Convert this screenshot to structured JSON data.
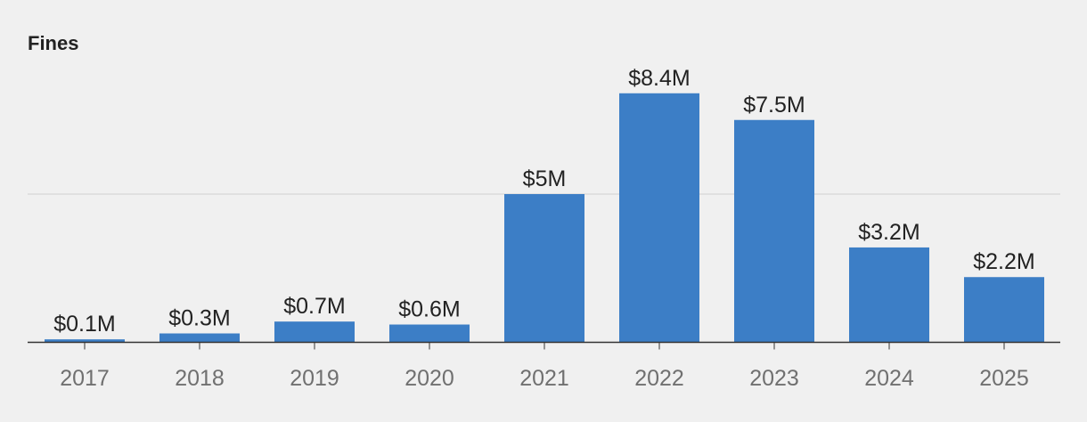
{
  "chart_data": {
    "type": "bar",
    "title": "Fines",
    "categories": [
      "2017",
      "2018",
      "2019",
      "2020",
      "2021",
      "2022",
      "2023",
      "2024",
      "2025"
    ],
    "values": [
      0.1,
      0.3,
      0.7,
      0.6,
      5,
      8.4,
      7.5,
      3.2,
      2.2
    ],
    "value_labels": [
      "$0.1M",
      "$0.3M",
      "$0.7M",
      "$0.6M",
      "$5M",
      "$8.4M",
      "$7.5M",
      "$3.2M",
      "$2.2M"
    ],
    "xlabel": "",
    "ylabel": "",
    "ylim": [
      0,
      10
    ],
    "gridlines": [
      5
    ],
    "unit": "$M",
    "colors": {
      "bar": "#3c7ec6",
      "grid": "#d6d6d6",
      "axis": "#333333"
    }
  }
}
